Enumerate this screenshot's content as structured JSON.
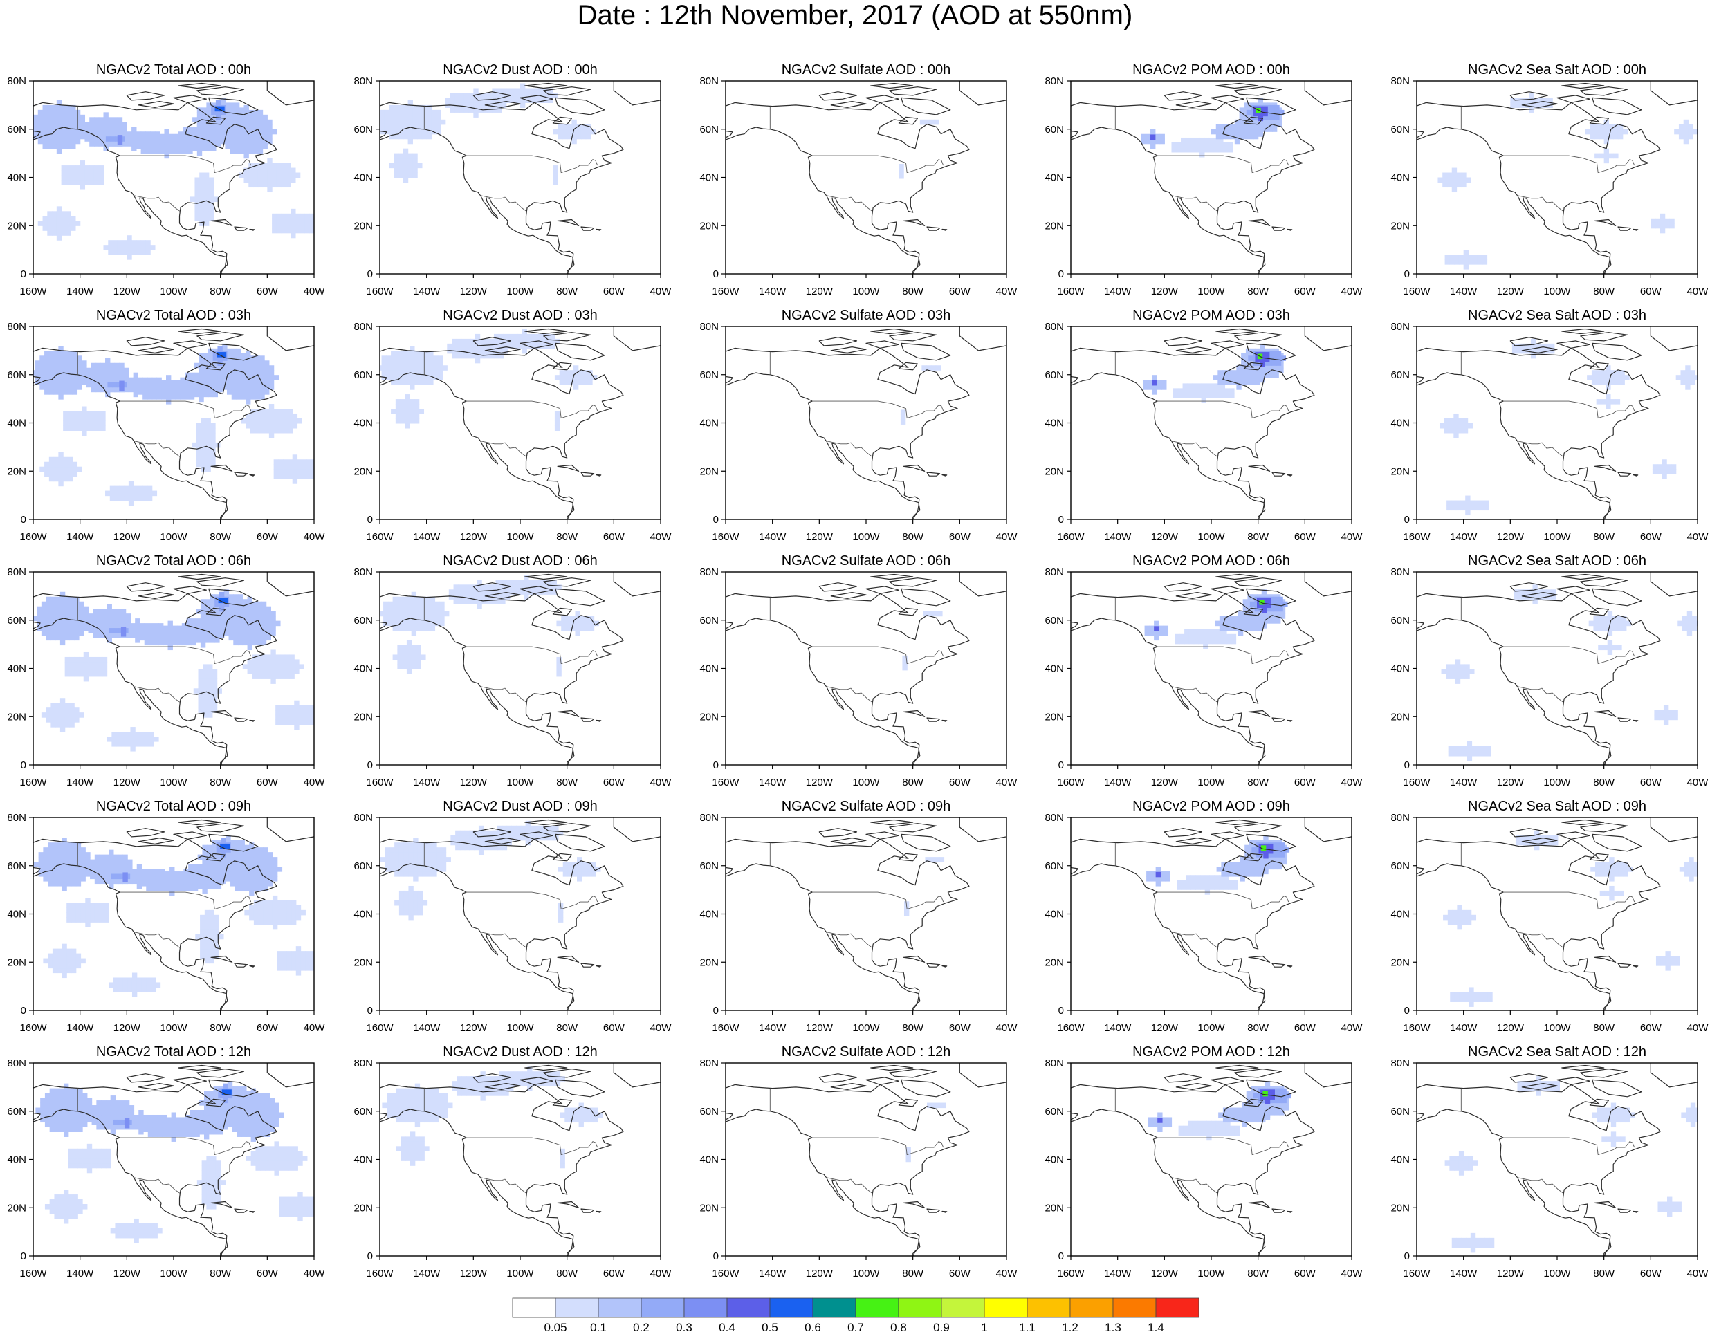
{
  "title": "Date : 12th November, 2017 (AOD at 550nm)",
  "x_ticks": [
    "160W",
    "140W",
    "120W",
    "100W",
    "80W",
    "60W",
    "40W"
  ],
  "y_ticks": [
    "0",
    "20N",
    "40N",
    "60N",
    "80N"
  ],
  "panels": [
    {
      "title": "NGACv2 Total AOD : 00h",
      "species": "total",
      "hour": 0
    },
    {
      "title": "NGACv2 Dust AOD : 00h",
      "species": "dust",
      "hour": 0
    },
    {
      "title": "NGACv2 Sulfate AOD : 00h",
      "species": "sulfate",
      "hour": 0
    },
    {
      "title": "NGACv2 POM AOD : 00h",
      "species": "pom",
      "hour": 0
    },
    {
      "title": "NGACv2 Sea Salt AOD : 00h",
      "species": "seasalt",
      "hour": 0
    },
    {
      "title": "NGACv2 Total AOD : 03h",
      "species": "total",
      "hour": 3
    },
    {
      "title": "NGACv2 Dust AOD : 03h",
      "species": "dust",
      "hour": 3
    },
    {
      "title": "NGACv2 Sulfate AOD : 03h",
      "species": "sulfate",
      "hour": 3
    },
    {
      "title": "NGACv2 POM AOD : 03h",
      "species": "pom",
      "hour": 3
    },
    {
      "title": "NGACv2 Sea Salt AOD : 03h",
      "species": "seasalt",
      "hour": 3
    },
    {
      "title": "NGACv2 Total AOD : 06h",
      "species": "total",
      "hour": 6
    },
    {
      "title": "NGACv2 Dust AOD : 06h",
      "species": "dust",
      "hour": 6
    },
    {
      "title": "NGACv2 Sulfate AOD : 06h",
      "species": "sulfate",
      "hour": 6
    },
    {
      "title": "NGACv2 POM AOD : 06h",
      "species": "pom",
      "hour": 6
    },
    {
      "title": "NGACv2 Sea Salt AOD : 06h",
      "species": "seasalt",
      "hour": 6
    },
    {
      "title": "NGACv2 Total AOD : 09h",
      "species": "total",
      "hour": 9
    },
    {
      "title": "NGACv2 Dust AOD : 09h",
      "species": "dust",
      "hour": 9
    },
    {
      "title": "NGACv2 Sulfate AOD : 09h",
      "species": "sulfate",
      "hour": 9
    },
    {
      "title": "NGACv2 POM AOD : 09h",
      "species": "pom",
      "hour": 9
    },
    {
      "title": "NGACv2 Sea Salt  AOD : 09h",
      "species": "seasalt",
      "hour": 9
    },
    {
      "title": "NGACv2 Total AOD  : 12h",
      "species": "total",
      "hour": 12
    },
    {
      "title": "NGACv2 Dust AOD : 12h",
      "species": "dust",
      "hour": 12
    },
    {
      "title": "NGACv2 Sulfate AOD : 12h",
      "species": "sulfate",
      "hour": 12
    },
    {
      "title": "NGACv2 POM  AOD : 12h",
      "species": "pom",
      "hour": 12
    },
    {
      "title": "NGACv2 Sea Salt  AOD : 12h",
      "species": "seasalt",
      "hour": 12
    }
  ],
  "colorbar": {
    "labels": [
      "0.05",
      "0.1",
      "0.2",
      "0.3",
      "0.4",
      "0.5",
      "0.6",
      "0.7",
      "0.8",
      "0.9",
      "1",
      "1.1",
      "1.2",
      "1.3",
      "1.4"
    ],
    "colors": [
      "#ffffff",
      "#d3defd",
      "#b2c4fa",
      "#93aaf7",
      "#7c8ff3",
      "#5c5fe8",
      "#1a61f0",
      "#00908f",
      "#46f214",
      "#8ff514",
      "#c4f53b",
      "#ffff00",
      "#fdc100",
      "#fba000",
      "#fb7a00",
      "#f8261a"
    ]
  }
}
